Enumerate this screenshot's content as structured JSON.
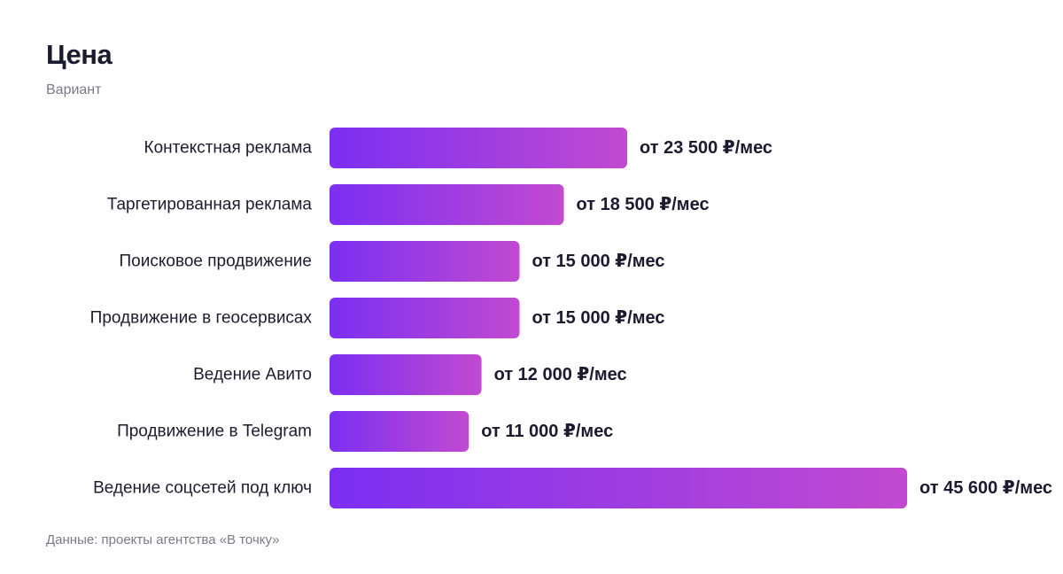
{
  "header": {
    "title": "Цена",
    "subtitle": "Вариант"
  },
  "footer": {
    "source": "Данные: проекты агентства «В точку»"
  },
  "colors": {
    "bar_start": "#7b2ff2",
    "bar_end": "#c14ad0",
    "text": "#1b1b2f",
    "muted": "#7a7a88"
  },
  "chart_data": {
    "type": "bar",
    "orientation": "horizontal",
    "title": "Цена",
    "subtitle": "Вариант",
    "xlabel": "",
    "ylabel": "",
    "grid": false,
    "categories": [
      "Контекстная реклама",
      "Таргетированная реклама",
      "Поисковое продвижение",
      "Продвижение в геосервисах",
      "Ведение Авито",
      "Продвижение в Telegram",
      "Ведение соцсетей под ключ"
    ],
    "values": [
      23500,
      18500,
      15000,
      15000,
      12000,
      11000,
      45600
    ],
    "value_labels": [
      "от 23 500 ₽/мес",
      "от 18 500 ₽/мес",
      "от 15 000 ₽/мес",
      "от 15 000 ₽/мес",
      "от 12 000 ₽/мес",
      "от 11 000 ₽/мес",
      "от 45 600 ₽/мес"
    ],
    "xlim": [
      0,
      45600
    ]
  }
}
